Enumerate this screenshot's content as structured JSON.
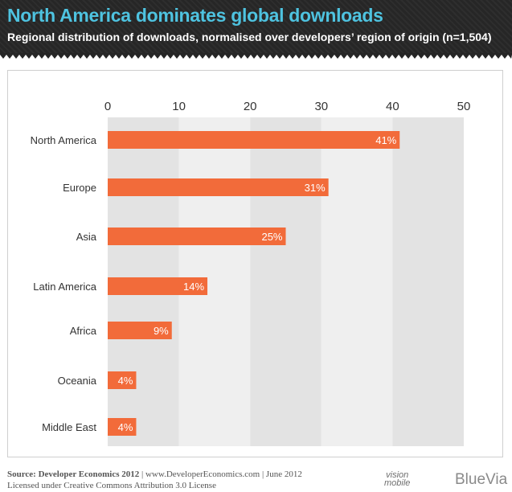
{
  "header": {
    "title": "North America dominates global downloads",
    "subtitle": "Regional distribution of downloads, normalised over developers’ region of origin (n=1,504)"
  },
  "chart_data": {
    "type": "bar",
    "orientation": "horizontal",
    "categories": [
      "North America",
      "Europe",
      "Asia",
      "Latin America",
      "Africa",
      "Oceania",
      "Middle East"
    ],
    "values": [
      41,
      31,
      25,
      14,
      9,
      4,
      4
    ],
    "value_labels": [
      "41%",
      "31%",
      "25%",
      "14%",
      "9%",
      "4%",
      "4%"
    ],
    "xlim": [
      0,
      50
    ],
    "xticks": [
      0,
      10,
      20,
      30,
      40,
      50
    ],
    "tick_labels": [
      "0",
      "10",
      "20",
      "30",
      "40",
      "50"
    ],
    "axis_position": "top",
    "grid": "alternating vertical bands",
    "colors": {
      "bar": "#f26b3a",
      "band_dark": "#e3e3e3",
      "band_light": "#efefef",
      "label_text": "#ffffff"
    }
  },
  "footer": {
    "source_label": "Source: Developer Economics 2012",
    "source_rest": " | www.DeveloperEconomics.com | June 2012",
    "license": "Licensed under Creative Commons Attribution 3.0 License"
  },
  "logos": {
    "vision_top": "vision",
    "vision_bottom": "mobile",
    "bluevia": "BlueVia"
  }
}
